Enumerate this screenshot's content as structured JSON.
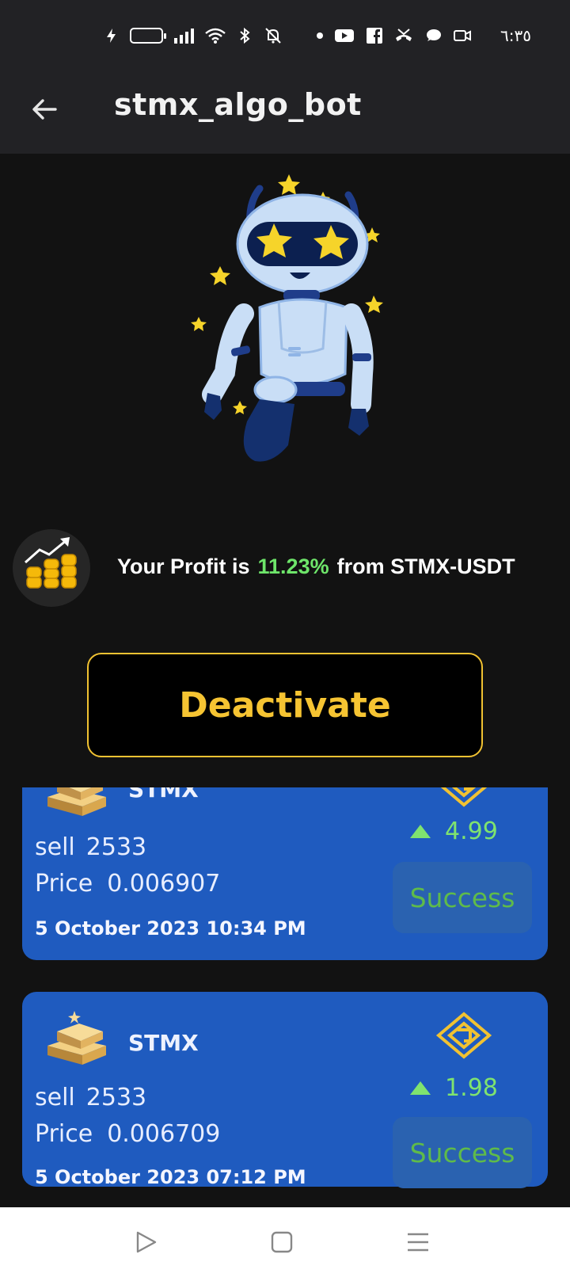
{
  "status_bar": {
    "time": "٦:٣٥",
    "icons": [
      "charging-icon",
      "battery-icon",
      "signal-icon",
      "wifi-icon",
      "bluetooth-icon",
      "mute-icon",
      "dot-icon",
      "youtube-icon",
      "facebook-icon",
      "missed-call-icon",
      "chat-icon",
      "video-call-icon"
    ]
  },
  "app_bar": {
    "title": "stmx_algo_bot",
    "back_icon": "arrow-left-icon"
  },
  "profit": {
    "prefix": "Your Profit is",
    "percent": "11.23%",
    "suffix": "from STMX-USDT",
    "icon": "profit-chart-coins-icon"
  },
  "deactivate_label": "Deactivate",
  "trades": [
    {
      "coin": "STMX",
      "action": "sell",
      "amount": "2533",
      "price_label": "Price",
      "price": "0.006907",
      "date": "5 October 2023 10:34 PM",
      "gain": "4.99",
      "status": "Success"
    },
    {
      "coin": "STMX",
      "action": "sell",
      "amount": "2533",
      "price_label": "Price",
      "price": "0.006709",
      "date": "5 October 2023 07:12 PM",
      "gain": "1.98",
      "status": "Success"
    }
  ],
  "nav": {
    "icons": [
      "back-triangle-icon",
      "home-square-icon",
      "menu-lines-icon"
    ]
  },
  "colors": {
    "accent": "#f6c432",
    "profit_green": "#6ee56a",
    "card_blue": "#1f5bbf",
    "background": "#121212"
  }
}
